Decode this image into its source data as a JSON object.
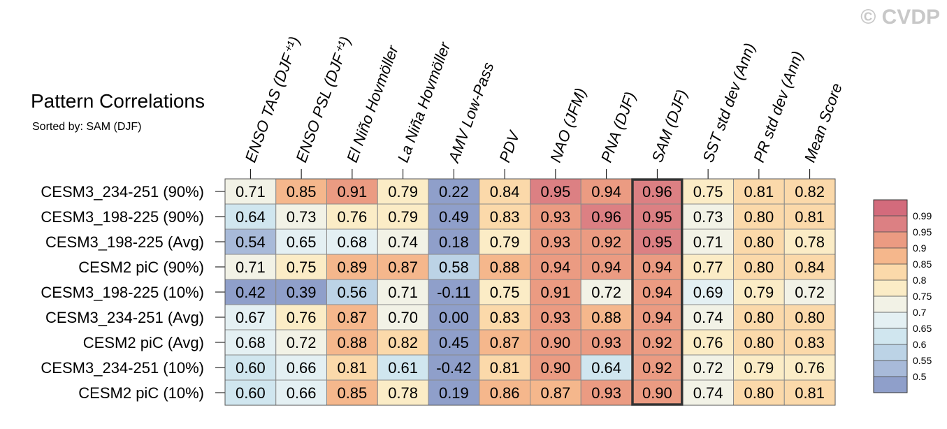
{
  "copyright": "© CVDP",
  "chart_data": {
    "type": "heatmap",
    "title": "Pattern Correlations",
    "subtitle": "Sorted by: SAM (DJF)",
    "columns": [
      "ENSO TAS (DJF⁺¹)",
      "ENSO PSL (DJF⁺¹)",
      "El Niño Hovmöller",
      "La Niña Hovmöller",
      "AMV Low-Pass",
      "PDV",
      "NAO (JFM)",
      "PNA (DJF)",
      "SAM (DJF)",
      "SST std dev (Ann)",
      "PR std dev (Ann)",
      "Mean Score"
    ],
    "rows": [
      "CESM3_234-251 (90%)",
      "CESM3_198-225 (90%)",
      "CESM3_198-225 (Avg)",
      "CESM2 piC (90%)",
      "CESM3_198-225 (10%)",
      "CESM3_234-251 (Avg)",
      "CESM2 piC (Avg)",
      "CESM3_234-251 (10%)",
      "CESM2 piC (10%)"
    ],
    "values": [
      [
        "0.71",
        "0.85",
        "0.91",
        "0.79",
        "0.22",
        "0.84",
        "0.95",
        "0.94",
        "0.96",
        "0.75",
        "0.81",
        "0.82"
      ],
      [
        "0.64",
        "0.73",
        "0.76",
        "0.79",
        "0.49",
        "0.83",
        "0.93",
        "0.96",
        "0.95",
        "0.73",
        "0.80",
        "0.81"
      ],
      [
        "0.54",
        "0.65",
        "0.68",
        "0.74",
        "0.18",
        "0.79",
        "0.93",
        "0.92",
        "0.95",
        "0.71",
        "0.80",
        "0.78"
      ],
      [
        "0.71",
        "0.75",
        "0.89",
        "0.87",
        "0.58",
        "0.88",
        "0.94",
        "0.94",
        "0.94",
        "0.77",
        "0.80",
        "0.84"
      ],
      [
        "0.42",
        "0.39",
        "0.56",
        "0.71",
        "-0.11",
        "0.75",
        "0.91",
        "0.72",
        "0.94",
        "0.69",
        "0.79",
        "0.72"
      ],
      [
        "0.67",
        "0.76",
        "0.87",
        "0.70",
        "0.00",
        "0.83",
        "0.93",
        "0.88",
        "0.94",
        "0.74",
        "0.80",
        "0.80"
      ],
      [
        "0.68",
        "0.72",
        "0.88",
        "0.82",
        "0.45",
        "0.87",
        "0.90",
        "0.93",
        "0.92",
        "0.76",
        "0.80",
        "0.83"
      ],
      [
        "0.60",
        "0.66",
        "0.81",
        "0.61",
        "-0.42",
        "0.81",
        "0.90",
        "0.64",
        "0.92",
        "0.72",
        "0.79",
        "0.76"
      ],
      [
        "0.60",
        "0.66",
        "0.85",
        "0.78",
        "0.19",
        "0.86",
        "0.87",
        "0.93",
        "0.90",
        "0.74",
        "0.80",
        "0.81"
      ]
    ],
    "highlight_column": "SAM (DJF)",
    "colorbar": {
      "levels": [
        "0.99",
        "0.95",
        "0.9",
        "0.85",
        "0.8",
        "0.75",
        "0.7",
        "0.65",
        "0.6",
        "0.55",
        "0.5"
      ],
      "thresholds": [
        0.5,
        0.55,
        0.6,
        0.65,
        0.7,
        0.75,
        0.8,
        0.85,
        0.9,
        0.95,
        0.99
      ],
      "colors": [
        "#8f9fca",
        "#a8bad9",
        "#bcd3e6",
        "#d0e6ef",
        "#e4f0f3",
        "#f2f2e6",
        "#fbecc6",
        "#fbd9aa",
        "#f5b78c",
        "#eb9b82",
        "#dc8083",
        "#d36b7c"
      ]
    }
  }
}
